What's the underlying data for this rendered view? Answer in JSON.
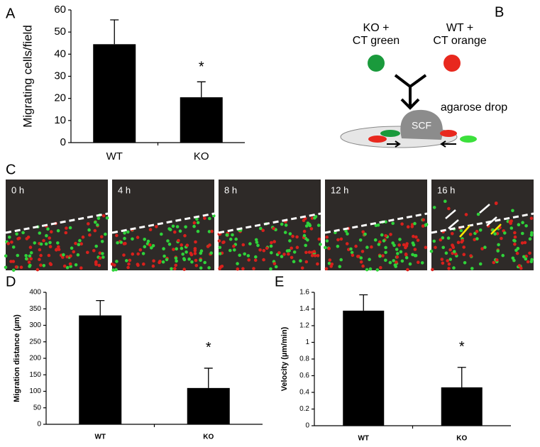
{
  "panel_labels": [
    "A",
    "B",
    "C",
    "D",
    "E"
  ],
  "chart_data": [
    {
      "type": "bar",
      "ylabel": "Migrating cells/field",
      "categories": [
        "WT",
        "KO"
      ],
      "values": [
        44.5,
        20.5
      ],
      "errors": [
        11,
        7
      ],
      "color": "#000000",
      "ylim": [
        0,
        60
      ],
      "yticks": [
        0,
        10,
        20,
        30,
        40,
        50,
        60
      ],
      "annotation": "*"
    },
    {
      "type": "bar",
      "ylabel": "Migration distance (µm)",
      "categories": [
        "WT",
        "KO"
      ],
      "values": [
        330,
        110
      ],
      "errors": [
        45,
        60
      ],
      "color": "#000000",
      "ylim": [
        0,
        400
      ],
      "yticks": [
        0,
        50,
        100,
        150,
        200,
        250,
        300,
        350,
        400
      ],
      "annotation": "*"
    },
    {
      "type": "bar",
      "ylabel": "Velocity (µm/min)",
      "categories": [
        "WT",
        "KO"
      ],
      "values": [
        1.38,
        0.46
      ],
      "errors": [
        0.19,
        0.24
      ],
      "color": "#000000",
      "ylim": [
        0,
        1.6
      ],
      "yticks": [
        0,
        0.2,
        0.4,
        0.6,
        0.8,
        1,
        1.2,
        1.4,
        1.6
      ],
      "annotation": "*"
    }
  ],
  "diagram": {
    "left_label": [
      "KO +",
      "CT green"
    ],
    "right_label": [
      "WT +",
      "CT orange"
    ],
    "drop_label": "agarose drop",
    "center_label": "SCF"
  },
  "timelapse": {
    "frames": [
      "0 h",
      "4 h",
      "8 h",
      "12 h",
      "16 h"
    ]
  }
}
